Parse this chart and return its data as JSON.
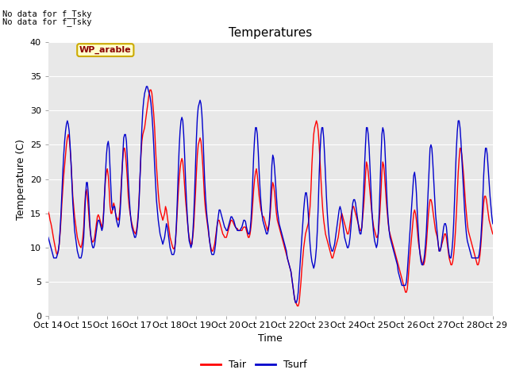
{
  "title": "Temperatures",
  "xlabel": "Time",
  "ylabel": "Temperature (C)",
  "ylim": [
    0,
    40
  ],
  "yticks": [
    0,
    5,
    10,
    15,
    20,
    25,
    30,
    35,
    40
  ],
  "xtick_labels": [
    "Oct 14",
    "Oct 15",
    "Oct 16",
    "Oct 17",
    "Oct 18",
    "Oct 19",
    "Oct 20",
    "Oct 21",
    "Oct 22",
    "Oct 23",
    "Oct 24",
    "Oct 25",
    "Oct 26",
    "Oct 27",
    "Oct 28",
    "Oct 29"
  ],
  "color_tair": "#ff0000",
  "color_tsurf": "#0000cc",
  "plot_bg": "#e8e8e8",
  "fig_bg": "#ffffff",
  "no_data_text1": "No data for f_Tsky",
  "no_data_text2": "No data for f_Tsky",
  "wp_label": "WP_arable",
  "legend_labels": [
    "Tair",
    "Tsurf"
  ],
  "tair": [
    15.2,
    14.8,
    14.0,
    13.5,
    12.8,
    12.0,
    11.2,
    10.5,
    9.8,
    9.2,
    9.0,
    9.5,
    10.5,
    12.0,
    14.0,
    16.5,
    18.5,
    20.5,
    22.0,
    23.5,
    25.0,
    26.0,
    26.5,
    26.0,
    24.5,
    22.5,
    20.0,
    17.5,
    16.0,
    14.5,
    13.5,
    12.5,
    11.5,
    11.0,
    10.5,
    10.2,
    10.0,
    10.5,
    11.5,
    13.0,
    16.0,
    18.0,
    18.5,
    17.5,
    16.0,
    14.0,
    12.5,
    11.5,
    11.0,
    10.8,
    11.0,
    11.5,
    12.5,
    13.5,
    14.5,
    14.8,
    14.5,
    14.0,
    13.5,
    13.0,
    13.5,
    15.5,
    18.0,
    20.0,
    21.0,
    21.5,
    20.5,
    18.5,
    16.0,
    15.0,
    15.0,
    16.0,
    16.5,
    16.0,
    15.0,
    14.5,
    14.2,
    14.0,
    14.5,
    16.0,
    18.5,
    21.0,
    23.0,
    24.5,
    24.5,
    23.5,
    22.0,
    20.0,
    17.5,
    16.0,
    15.0,
    14.2,
    13.5,
    13.0,
    12.5,
    12.2,
    12.0,
    12.5,
    13.5,
    15.0,
    17.5,
    20.5,
    23.5,
    25.5,
    26.5,
    27.0,
    27.5,
    28.5,
    29.5,
    30.5,
    31.5,
    32.5,
    33.0,
    33.0,
    32.5,
    31.0,
    29.5,
    27.5,
    24.5,
    22.0,
    20.0,
    18.0,
    16.5,
    15.5,
    15.0,
    14.5,
    14.0,
    14.5,
    15.0,
    16.0,
    15.5,
    14.5,
    13.5,
    12.5,
    11.5,
    11.0,
    10.5,
    10.0,
    9.8,
    10.0,
    11.0,
    13.0,
    15.5,
    18.0,
    20.0,
    21.5,
    22.5,
    23.0,
    22.5,
    21.0,
    19.0,
    17.0,
    15.5,
    14.0,
    12.5,
    11.5,
    11.0,
    10.5,
    10.5,
    11.5,
    13.0,
    15.5,
    18.0,
    21.0,
    23.5,
    25.0,
    25.5,
    26.0,
    25.5,
    24.0,
    22.0,
    19.5,
    17.0,
    15.5,
    14.5,
    13.5,
    12.5,
    11.5,
    10.5,
    10.0,
    9.5,
    9.5,
    10.0,
    10.5,
    11.5,
    12.5,
    13.5,
    14.0,
    14.0,
    13.5,
    13.0,
    12.5,
    12.0,
    11.8,
    11.5,
    11.5,
    11.5,
    12.0,
    12.5,
    13.0,
    13.5,
    14.0,
    14.0,
    13.8,
    13.5,
    13.2,
    13.0,
    12.8,
    12.8,
    12.5,
    12.5,
    12.5,
    12.5,
    12.5,
    12.8,
    13.0,
    13.0,
    13.0,
    12.5,
    12.0,
    11.5,
    11.5,
    12.0,
    13.0,
    14.5,
    16.5,
    18.5,
    20.0,
    21.0,
    21.5,
    20.5,
    19.0,
    17.5,
    16.5,
    15.5,
    15.0,
    14.5,
    14.5,
    14.0,
    13.5,
    13.0,
    12.5,
    13.0,
    13.5,
    14.5,
    16.5,
    18.5,
    19.5,
    19.0,
    18.0,
    16.5,
    15.0,
    14.0,
    13.5,
    13.0,
    12.5,
    12.0,
    11.5,
    11.0,
    10.5,
    10.0,
    9.5,
    9.0,
    8.5,
    8.0,
    7.5,
    7.0,
    6.5,
    5.5,
    4.5,
    3.5,
    2.5,
    2.0,
    1.8,
    1.5,
    1.5,
    2.0,
    3.5,
    5.0,
    7.0,
    8.5,
    10.0,
    11.0,
    12.0,
    12.5,
    13.0,
    13.5,
    14.5,
    16.0,
    18.5,
    22.0,
    24.5,
    26.5,
    27.5,
    28.0,
    28.5,
    28.0,
    27.0,
    25.0,
    22.5,
    20.0,
    17.5,
    15.5,
    14.0,
    13.0,
    12.0,
    11.5,
    11.0,
    10.5,
    10.0,
    9.5,
    9.0,
    8.5,
    8.5,
    9.0,
    9.5,
    10.0,
    10.5,
    11.0,
    11.5,
    12.5,
    13.5,
    14.5,
    15.0,
    14.5,
    14.0,
    13.5,
    13.0,
    12.5,
    12.0,
    12.0,
    12.5,
    13.5,
    14.5,
    15.5,
    16.0,
    16.0,
    15.5,
    15.0,
    14.5,
    14.0,
    13.5,
    13.0,
    12.5,
    12.5,
    13.0,
    14.5,
    16.0,
    18.0,
    20.5,
    22.5,
    22.0,
    21.0,
    19.5,
    18.0,
    16.5,
    15.0,
    14.0,
    13.0,
    12.5,
    12.0,
    11.5,
    11.5,
    12.0,
    13.5,
    15.5,
    18.0,
    21.0,
    22.5,
    22.0,
    20.5,
    18.5,
    16.5,
    15.0,
    13.5,
    12.5,
    12.0,
    11.5,
    11.0,
    10.5,
    10.0,
    9.5,
    9.0,
    8.5,
    8.0,
    7.5,
    7.0,
    6.5,
    6.0,
    5.5,
    5.0,
    4.5,
    4.0,
    3.5,
    3.5,
    4.0,
    5.5,
    7.5,
    9.0,
    10.5,
    12.0,
    13.5,
    15.0,
    15.5,
    15.0,
    14.0,
    12.5,
    11.0,
    10.0,
    9.2,
    8.5,
    8.0,
    7.5,
    7.5,
    8.0,
    9.0,
    10.5,
    12.5,
    14.5,
    16.0,
    17.0,
    17.0,
    16.5,
    15.5,
    14.5,
    13.5,
    12.5,
    12.0,
    11.5,
    10.5,
    9.5,
    9.5,
    10.0,
    10.5,
    11.0,
    11.5,
    12.0,
    12.0,
    11.5,
    10.5,
    9.5,
    8.5,
    8.0,
    7.5,
    7.5,
    8.0,
    9.0,
    10.5,
    12.5,
    15.0,
    18.0,
    21.0,
    23.0,
    24.5,
    24.5,
    23.5,
    22.0,
    20.5,
    18.5,
    16.5,
    15.0,
    13.5,
    12.5,
    12.0,
    11.5,
    11.0,
    10.5,
    10.0,
    9.5,
    9.0,
    8.5,
    8.0,
    7.5,
    7.5,
    8.0,
    9.0,
    10.5,
    12.5,
    14.5,
    16.5,
    17.5,
    17.5,
    17.0,
    16.0,
    15.0,
    14.0,
    13.5,
    13.0,
    12.5,
    12.0
  ],
  "tsurf": [
    11.5,
    11.0,
    10.5,
    10.0,
    9.5,
    9.0,
    8.5,
    8.5,
    8.5,
    8.5,
    9.0,
    9.5,
    10.5,
    12.5,
    15.0,
    18.0,
    21.0,
    23.5,
    25.5,
    27.0,
    28.0,
    28.5,
    28.0,
    27.0,
    25.0,
    22.5,
    19.5,
    16.5,
    14.5,
    12.5,
    11.5,
    10.5,
    9.5,
    9.0,
    8.5,
    8.5,
    8.5,
    9.0,
    10.0,
    11.5,
    14.5,
    17.5,
    19.5,
    19.5,
    18.0,
    15.5,
    13.0,
    11.5,
    10.5,
    10.0,
    10.0,
    10.5,
    11.5,
    12.5,
    13.5,
    14.0,
    14.0,
    13.5,
    13.0,
    12.5,
    13.0,
    15.0,
    18.0,
    21.0,
    23.5,
    25.0,
    25.5,
    24.5,
    21.5,
    18.5,
    16.0,
    15.5,
    16.0,
    16.0,
    15.0,
    14.0,
    13.5,
    13.0,
    13.5,
    15.0,
    17.5,
    20.5,
    23.5,
    26.0,
    26.5,
    26.5,
    25.5,
    23.0,
    20.0,
    17.5,
    15.5,
    14.0,
    13.0,
    12.5,
    12.0,
    11.5,
    11.5,
    12.0,
    13.0,
    14.5,
    17.0,
    20.5,
    24.0,
    27.5,
    30.0,
    31.5,
    32.5,
    33.0,
    33.5,
    33.5,
    33.0,
    32.5,
    32.0,
    31.0,
    29.5,
    27.5,
    25.0,
    22.0,
    19.5,
    17.0,
    15.5,
    14.0,
    13.0,
    12.0,
    11.5,
    11.0,
    10.5,
    11.0,
    11.5,
    12.5,
    13.5,
    13.0,
    12.0,
    11.0,
    10.0,
    9.5,
    9.0,
    9.0,
    9.0,
    9.5,
    11.0,
    13.5,
    17.0,
    21.0,
    24.5,
    27.0,
    28.5,
    29.0,
    28.5,
    26.5,
    23.5,
    20.0,
    17.0,
    14.5,
    12.5,
    11.0,
    10.5,
    10.0,
    10.5,
    12.0,
    14.5,
    18.0,
    22.0,
    26.0,
    29.0,
    30.5,
    31.0,
    31.5,
    31.0,
    29.5,
    27.0,
    23.5,
    20.0,
    17.5,
    15.5,
    14.0,
    13.0,
    11.5,
    10.5,
    9.5,
    9.0,
    9.0,
    9.0,
    9.5,
    10.5,
    12.0,
    13.5,
    14.5,
    15.5,
    15.5,
    15.0,
    14.5,
    14.0,
    13.5,
    13.0,
    12.8,
    12.5,
    12.5,
    13.0,
    13.5,
    14.0,
    14.5,
    14.5,
    14.2,
    14.0,
    13.5,
    13.0,
    12.8,
    12.5,
    12.5,
    12.5,
    12.5,
    12.8,
    13.0,
    13.5,
    14.0,
    14.0,
    13.8,
    13.0,
    12.5,
    12.0,
    12.0,
    12.5,
    14.0,
    16.5,
    20.0,
    23.5,
    26.0,
    27.5,
    27.5,
    26.5,
    24.0,
    21.0,
    18.5,
    16.5,
    15.0,
    14.0,
    13.5,
    13.0,
    12.5,
    12.0,
    12.0,
    12.5,
    13.5,
    15.5,
    18.5,
    22.0,
    23.5,
    23.0,
    21.5,
    19.5,
    17.5,
    15.5,
    14.5,
    13.5,
    13.0,
    12.5,
    12.0,
    11.5,
    11.0,
    10.5,
    10.0,
    9.5,
    8.5,
    8.0,
    7.5,
    7.0,
    6.5,
    5.5,
    4.5,
    3.5,
    2.5,
    2.0,
    2.0,
    2.5,
    3.5,
    5.5,
    7.5,
    9.5,
    11.5,
    13.5,
    15.5,
    17.0,
    18.0,
    18.0,
    17.0,
    15.0,
    12.5,
    10.5,
    9.0,
    8.0,
    7.5,
    7.0,
    7.5,
    8.5,
    10.0,
    12.5,
    16.0,
    20.5,
    24.0,
    26.5,
    27.5,
    27.5,
    26.0,
    23.5,
    20.5,
    17.5,
    15.0,
    13.0,
    11.5,
    10.5,
    10.0,
    9.5,
    9.5,
    10.0,
    10.5,
    11.5,
    12.5,
    13.5,
    14.5,
    15.5,
    16.0,
    15.5,
    14.5,
    13.5,
    12.5,
    11.5,
    11.0,
    10.5,
    10.0,
    10.0,
    10.5,
    11.5,
    13.0,
    15.0,
    16.5,
    17.0,
    17.0,
    16.5,
    15.5,
    14.5,
    13.5,
    12.5,
    12.0,
    12.0,
    13.0,
    15.5,
    18.5,
    22.0,
    25.0,
    27.5,
    27.5,
    26.5,
    24.5,
    21.5,
    18.5,
    15.5,
    13.5,
    12.0,
    11.0,
    10.5,
    10.0,
    10.5,
    12.0,
    15.0,
    19.0,
    23.0,
    26.5,
    27.5,
    27.0,
    25.5,
    22.5,
    19.0,
    16.0,
    14.0,
    12.5,
    11.5,
    11.0,
    10.5,
    10.0,
    9.5,
    9.0,
    8.5,
    8.0,
    7.5,
    6.5,
    6.0,
    5.5,
    5.0,
    4.5,
    4.5,
    4.5,
    4.5,
    4.5,
    5.0,
    6.5,
    8.5,
    10.5,
    12.5,
    14.5,
    16.5,
    18.5,
    20.5,
    21.0,
    20.0,
    18.0,
    15.0,
    12.5,
    10.5,
    9.0,
    8.0,
    7.5,
    7.5,
    8.0,
    9.0,
    10.5,
    12.5,
    15.5,
    18.5,
    21.5,
    24.5,
    25.0,
    24.5,
    22.5,
    20.0,
    17.5,
    15.0,
    13.5,
    12.0,
    10.5,
    9.5,
    9.5,
    10.0,
    11.0,
    12.0,
    13.0,
    13.5,
    13.5,
    13.0,
    11.5,
    10.0,
    9.0,
    8.5,
    8.5,
    9.5,
    11.0,
    13.5,
    17.0,
    21.0,
    24.5,
    27.0,
    28.5,
    28.5,
    27.5,
    25.5,
    23.0,
    20.5,
    18.0,
    15.5,
    13.5,
    12.0,
    11.0,
    10.5,
    10.0,
    9.5,
    9.0,
    8.5,
    8.5,
    8.5,
    8.5,
    8.5,
    8.5,
    8.5,
    8.5,
    9.0,
    10.0,
    11.5,
    14.0,
    17.0,
    20.5,
    23.0,
    24.5,
    24.5,
    23.5,
    21.5,
    19.5,
    17.5,
    16.0,
    14.5,
    13.5
  ]
}
